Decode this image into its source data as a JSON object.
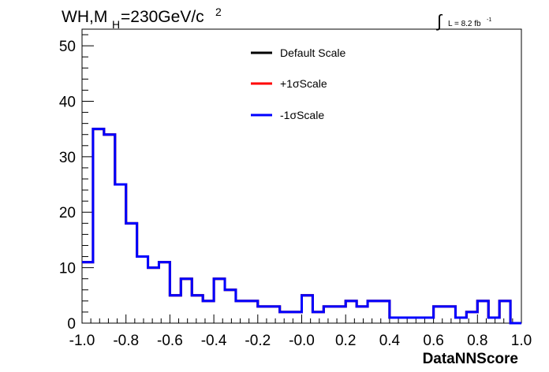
{
  "chart_data": {
    "type": "line",
    "title_parts": {
      "main": "WH,M",
      "sub": "H",
      "rest": "=230GeV/c",
      "sup": "2"
    },
    "luminosity": {
      "integral": "∫",
      "text": "L = 8.2 fb",
      "sup": "-1"
    },
    "xlabel": "DataNNScore",
    "ylabel": "",
    "xlim": [
      -1.0,
      1.0
    ],
    "ylim": [
      0,
      53
    ],
    "x_ticks": [
      "-1.0",
      "-0.8",
      "-0.6",
      "-0.4",
      "-0.2",
      "-0.0",
      "0.2",
      "0.4",
      "0.6",
      "0.8",
      "1.0"
    ],
    "x_tick_values": [
      -1.0,
      -0.8,
      -0.6,
      -0.4,
      -0.2,
      0.0,
      0.2,
      0.4,
      0.6,
      0.8,
      1.0
    ],
    "y_ticks": [
      "0",
      "10",
      "20",
      "30",
      "40",
      "50"
    ],
    "y_tick_values": [
      0,
      10,
      20,
      30,
      40,
      50
    ],
    "grid": false,
    "legend_position": "top-center",
    "bin_edges_start": -1.0,
    "bin_width": 0.05,
    "series": [
      {
        "name": "Default Scale",
        "color": "#000000",
        "values": [
          11,
          35,
          34,
          25,
          18,
          12,
          10,
          11,
          5,
          8,
          5,
          4,
          8,
          6,
          4,
          4,
          3,
          3,
          2,
          2,
          5,
          2,
          3,
          3,
          4,
          3,
          4,
          4,
          1,
          1,
          1,
          1,
          3,
          3,
          1,
          2,
          4,
          1,
          4,
          0
        ]
      },
      {
        "name": "+1σScale",
        "color": "#ff0000",
        "values": [
          11,
          35,
          34,
          25,
          18,
          12,
          10,
          11,
          5,
          8,
          5,
          4,
          8,
          6,
          4,
          4,
          3,
          3,
          2,
          2,
          5,
          2,
          3,
          3,
          4,
          3,
          4,
          4,
          1,
          1,
          1,
          1,
          3,
          3,
          1,
          2,
          4,
          1,
          4,
          0
        ]
      },
      {
        "name": "-1σScale",
        "color": "#0000ff",
        "values": [
          11,
          35,
          34,
          25,
          18,
          12,
          10,
          11,
          5,
          8,
          5,
          4,
          8,
          6,
          4,
          4,
          3,
          3,
          2,
          2,
          5,
          2,
          3,
          3,
          4,
          3,
          4,
          4,
          1,
          1,
          1,
          1,
          3,
          3,
          1,
          2,
          4,
          1,
          4,
          0
        ]
      }
    ]
  }
}
